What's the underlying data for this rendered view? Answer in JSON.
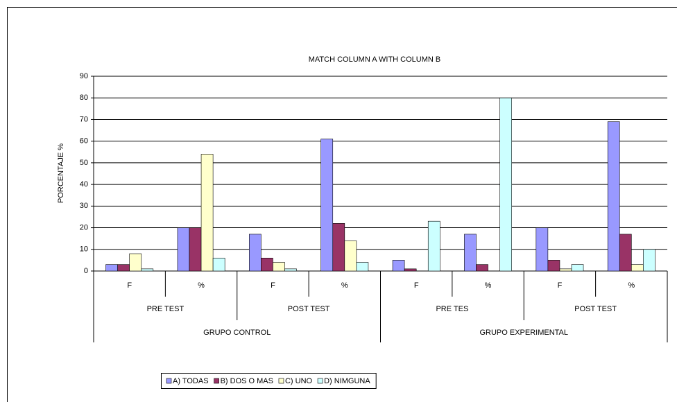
{
  "chart_data": {
    "type": "bar",
    "title": "MATCH COLUMN A WITH COLUMN B",
    "y_label": "PORCENTAJE %",
    "categories": [
      "F",
      "%",
      "F",
      "%",
      "F",
      "%",
      "F",
      "%"
    ],
    "groups": [
      {
        "name": "GRUPO CONTROL",
        "subgroups": [
          "PRE TEST",
          "POST TEST"
        ]
      },
      {
        "name": "GRUPO EXPERIMENTAL",
        "subgroups": [
          "PRE TES",
          "POST TEST"
        ]
      }
    ],
    "series": [
      {
        "name": "A) TODAS",
        "color": "#9999ff",
        "values": [
          3,
          20,
          17,
          61,
          5,
          17,
          20,
          69
        ]
      },
      {
        "name": "B) DOS O MAS",
        "color": "#993366",
        "values": [
          3,
          20,
          6,
          22,
          1,
          3,
          5,
          17
        ]
      },
      {
        "name": "C) UNO",
        "color": "#ffffcc",
        "values": [
          8,
          54,
          4,
          14,
          0,
          0,
          1,
          3
        ]
      },
      {
        "name": "D) NIMGUNA",
        "color": "#ccffff",
        "values": [
          1,
          6,
          1,
          4,
          23,
          80,
          3,
          10
        ]
      }
    ],
    "ylim": [
      0,
      90
    ],
    "yticks": [
      0,
      10,
      20,
      30,
      40,
      50,
      60,
      70,
      80,
      90
    ],
    "grid": true,
    "legend": "bottom"
  }
}
